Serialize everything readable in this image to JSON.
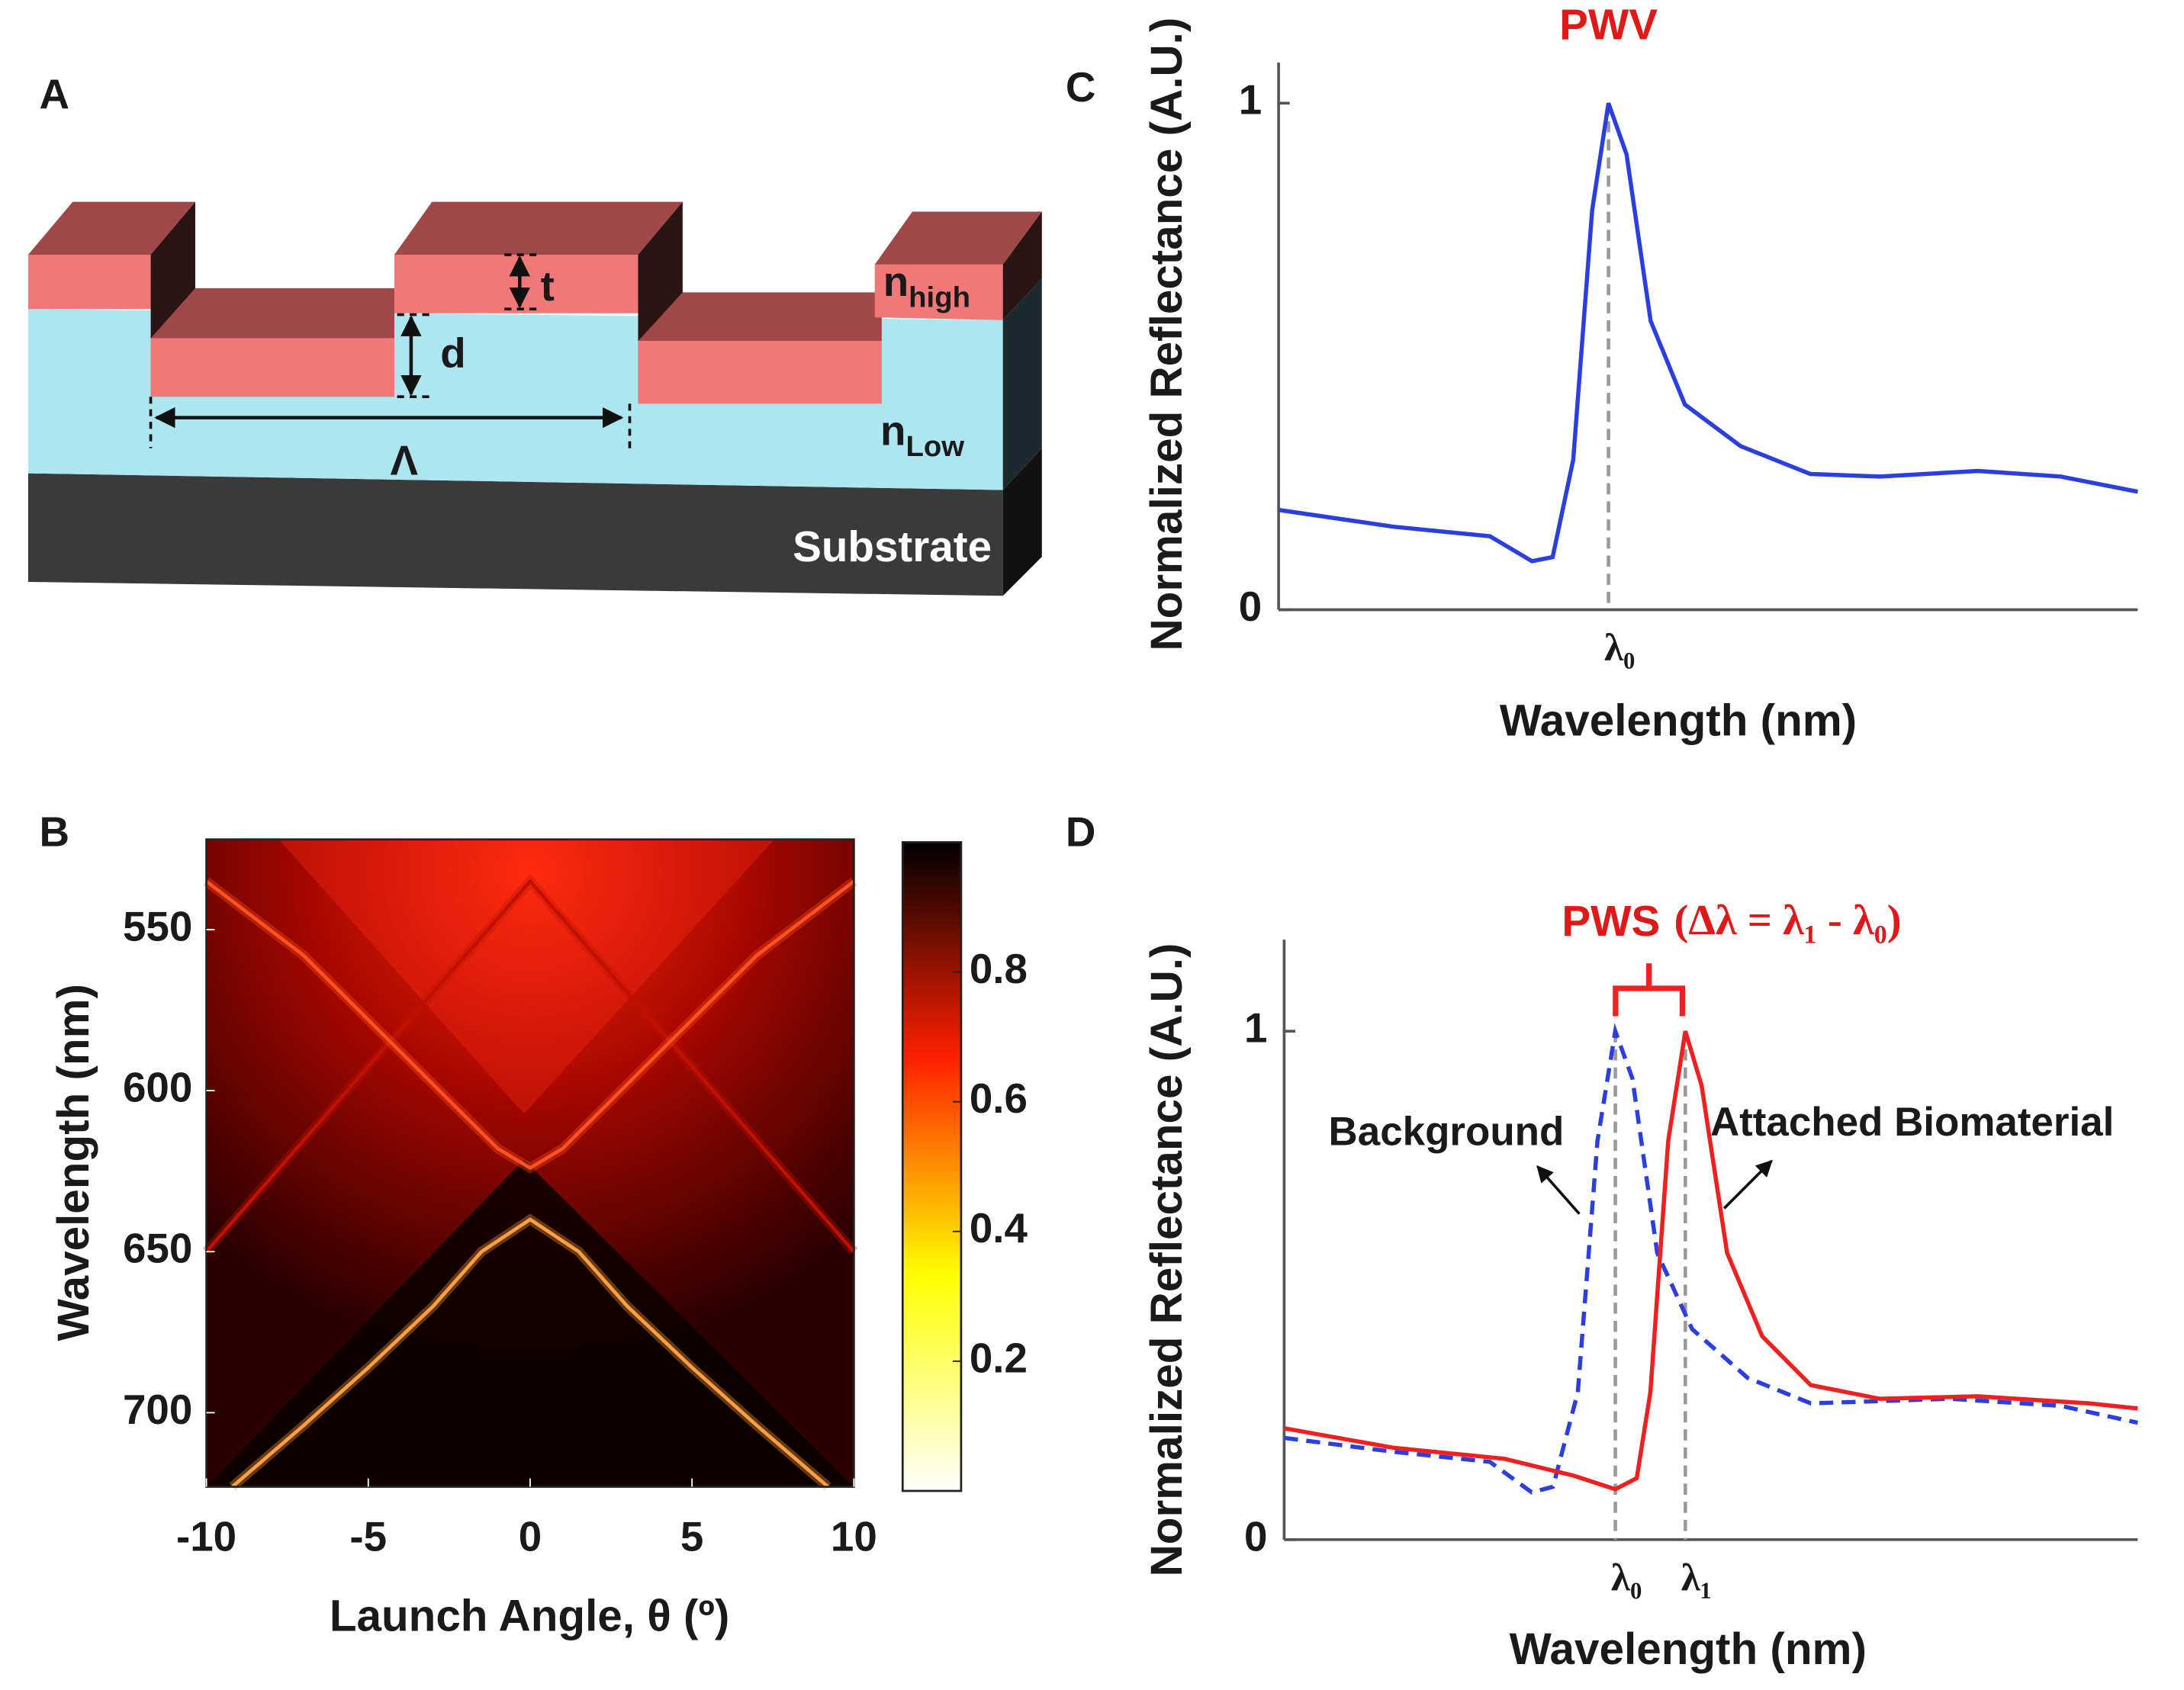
{
  "panel_labels": [
    "A",
    "B",
    "C",
    "D"
  ],
  "diagram": {
    "thickness": "t",
    "depth": "d",
    "period": "Λ",
    "layers": [
      {
        "symbol": "n",
        "subscript": "high"
      },
      {
        "symbol": "n",
        "subscript": "Low"
      },
      {
        "name": "Substrate"
      }
    ]
  },
  "chart_data": [
    {
      "type": "heatmap",
      "xlabel": "Launch Angle, θ (º)",
      "ylabel": "Wavelength (nm)",
      "xlim": [
        -10,
        10
      ],
      "xticks": [
        -10,
        -5,
        0,
        5,
        10
      ],
      "ylim": [
        522,
        723
      ],
      "y_inverted": true,
      "yticks": [
        550,
        600,
        650,
        700
      ],
      "colorbar": {
        "lim": [
          0,
          1
        ],
        "ticks": [
          0.2,
          0.4,
          0.6,
          0.8
        ],
        "colors": [
          "#ffffff",
          "#ffff00",
          "#ff2000",
          "#000000"
        ]
      },
      "curves": [
        {
          "color": "#c01000",
          "x": [
            -10,
            0,
            10
          ],
          "y": [
            650,
            535,
            650
          ]
        },
        {
          "color": "#ff5020",
          "x": [
            -10,
            -7,
            -4,
            -2,
            -1,
            0,
            1,
            2,
            4,
            7,
            10
          ],
          "y": [
            535,
            558,
            588,
            608,
            618,
            624,
            618,
            608,
            588,
            558,
            535
          ]
        },
        {
          "color": "#ffa040",
          "x": [
            -9.2,
            -7,
            -5,
            -3,
            -1.5,
            0,
            1.5,
            3,
            5,
            7,
            9.2
          ],
          "y": [
            723,
            704,
            686,
            667,
            650,
            640,
            650,
            667,
            686,
            704,
            723
          ]
        }
      ]
    },
    {
      "type": "line",
      "title": "PWV",
      "xlabel": "Wavelength (nm)",
      "ylabel": "Normalized  Reflectance (A.U.)",
      "xlim": [
        0,
        100
      ],
      "ylim": [
        0,
        1.08
      ],
      "yticks": [
        0,
        1
      ],
      "markers": [
        {
          "x": 38.4,
          "label": "λ₀"
        }
      ],
      "series": [
        {
          "color": "#2b3fe0",
          "style": "solid",
          "x": [
            0,
            13.3,
            24.6,
            29.5,
            31.9,
            34.3,
            36.5,
            38.4,
            40.5,
            43.3,
            47.3,
            53.8,
            61.9,
            70,
            81.4,
            91,
            100
          ],
          "values": [
            0.197,
            0.164,
            0.145,
            0.096,
            0.104,
            0.296,
            0.789,
            1.0,
            0.899,
            0.57,
            0.405,
            0.323,
            0.268,
            0.263,
            0.274,
            0.263,
            0.233
          ]
        }
      ]
    },
    {
      "type": "line",
      "title": "PWS",
      "subtitle": "(Δλ = λ₁ - λ₀)",
      "xlabel": "Wavelength (nm)",
      "ylabel": "Normalized Reflectance (A.U.)",
      "xlim": [
        0,
        100
      ],
      "ylim": [
        0,
        1.18
      ],
      "yticks": [
        0,
        1
      ],
      "markers": [
        {
          "x": 38.8,
          "label": "λ₀"
        },
        {
          "x": 47,
          "label": "λ₁"
        }
      ],
      "series": [
        {
          "name": "Background",
          "color": "#2b3fe0",
          "style": "dashed",
          "x": [
            0,
            12.7,
            24.1,
            29,
            31.5,
            34.4,
            36.7,
            38.8,
            40.8,
            43.7,
            47.8,
            54.3,
            61.7,
            78,
            91,
            100
          ],
          "values": [
            0.2,
            0.173,
            0.153,
            0.093,
            0.104,
            0.29,
            0.784,
            1.0,
            0.907,
            0.564,
            0.414,
            0.318,
            0.268,
            0.277,
            0.263,
            0.23
          ]
        },
        {
          "name": "Attached Biomaterial",
          "color": "#f02020",
          "style": "solid",
          "x": [
            0,
            12.7,
            25.8,
            33.9,
            38.8,
            41.3,
            42.9,
            45,
            47,
            48.9,
            51.9,
            56,
            61.7,
            69.8,
            81.2,
            94.3,
            100
          ],
          "values": [
            0.219,
            0.181,
            0.159,
            0.126,
            0.099,
            0.121,
            0.29,
            0.784,
            1.0,
            0.893,
            0.564,
            0.4,
            0.304,
            0.277,
            0.282,
            0.268,
            0.258
          ]
        }
      ]
    }
  ]
}
